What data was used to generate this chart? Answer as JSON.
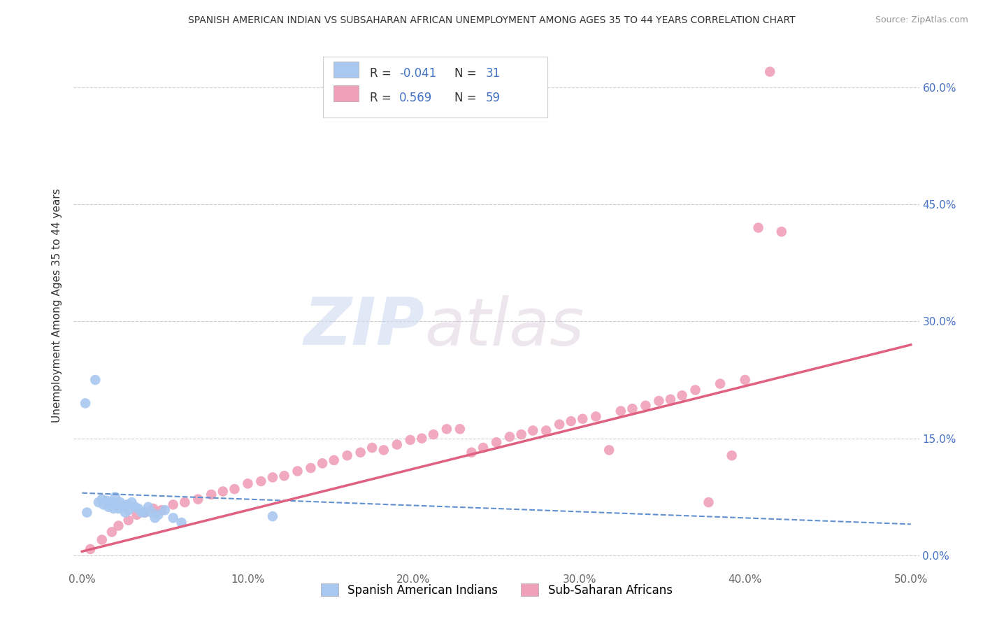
{
  "title": "SPANISH AMERICAN INDIAN VS SUBSAHARAN AFRICAN UNEMPLOYMENT AMONG AGES 35 TO 44 YEARS CORRELATION CHART",
  "source": "Source: ZipAtlas.com",
  "ylabel": "Unemployment Among Ages 35 to 44 years",
  "xlim": [
    -0.005,
    0.505
  ],
  "ylim": [
    -0.02,
    0.66
  ],
  "xticks": [
    0.0,
    0.1,
    0.2,
    0.3,
    0.4,
    0.5
  ],
  "yticks": [
    0.0,
    0.15,
    0.3,
    0.45,
    0.6
  ],
  "ytick_labels_right": [
    "0.0%",
    "15.0%",
    "30.0%",
    "45.0%",
    "60.0%"
  ],
  "xtick_labels": [
    "0.0%",
    "10.0%",
    "20.0%",
    "30.0%",
    "40.0%",
    "50.0%"
  ],
  "blue_R": -0.041,
  "blue_N": 31,
  "pink_R": 0.569,
  "pink_N": 59,
  "blue_color": "#a8c8f0",
  "pink_color": "#f0a0b8",
  "blue_line_color": "#6090d0",
  "pink_line_color": "#e06080",
  "watermark_zip": "ZIP",
  "watermark_atlas": "atlas",
  "legend_label_blue": "Spanish American Indians",
  "legend_label_pink": "Sub-Saharan Africans",
  "blue_scatter_x": [
    0.002,
    0.003,
    0.008,
    0.01,
    0.012,
    0.013,
    0.015,
    0.016,
    0.018,
    0.019,
    0.02,
    0.021,
    0.022,
    0.023,
    0.025,
    0.026,
    0.027,
    0.028,
    0.03,
    0.032,
    0.034,
    0.036,
    0.038,
    0.04,
    0.042,
    0.044,
    0.046,
    0.05,
    0.055,
    0.06,
    0.115
  ],
  "blue_scatter_y": [
    0.195,
    0.055,
    0.225,
    0.068,
    0.072,
    0.065,
    0.07,
    0.062,
    0.068,
    0.06,
    0.075,
    0.065,
    0.06,
    0.068,
    0.063,
    0.055,
    0.065,
    0.058,
    0.068,
    0.062,
    0.06,
    0.055,
    0.055,
    0.062,
    0.055,
    0.048,
    0.052,
    0.058,
    0.048,
    0.042,
    0.05
  ],
  "pink_scatter_x": [
    0.005,
    0.012,
    0.018,
    0.022,
    0.028,
    0.033,
    0.038,
    0.043,
    0.048,
    0.055,
    0.062,
    0.07,
    0.078,
    0.085,
    0.092,
    0.1,
    0.108,
    0.115,
    0.122,
    0.13,
    0.138,
    0.145,
    0.152,
    0.16,
    0.168,
    0.175,
    0.182,
    0.19,
    0.198,
    0.205,
    0.212,
    0.22,
    0.228,
    0.235,
    0.242,
    0.25,
    0.258,
    0.265,
    0.272,
    0.28,
    0.288,
    0.295,
    0.302,
    0.31,
    0.318,
    0.325,
    0.332,
    0.34,
    0.348,
    0.355,
    0.362,
    0.37,
    0.378,
    0.385,
    0.392,
    0.4,
    0.408,
    0.415,
    0.422
  ],
  "pink_scatter_y": [
    0.008,
    0.02,
    0.03,
    0.038,
    0.045,
    0.052,
    0.055,
    0.06,
    0.058,
    0.065,
    0.068,
    0.072,
    0.078,
    0.082,
    0.085,
    0.092,
    0.095,
    0.1,
    0.102,
    0.108,
    0.112,
    0.118,
    0.122,
    0.128,
    0.132,
    0.138,
    0.135,
    0.142,
    0.148,
    0.15,
    0.155,
    0.162,
    0.162,
    0.132,
    0.138,
    0.145,
    0.152,
    0.155,
    0.16,
    0.16,
    0.168,
    0.172,
    0.175,
    0.178,
    0.135,
    0.185,
    0.188,
    0.192,
    0.198,
    0.2,
    0.205,
    0.212,
    0.068,
    0.22,
    0.128,
    0.225,
    0.42,
    0.62,
    0.415
  ],
  "pink_trendline_x": [
    0.0,
    0.5
  ],
  "pink_trendline_y": [
    0.005,
    0.27
  ],
  "blue_trendline_x": [
    0.0,
    0.5
  ],
  "blue_trendline_y": [
    0.08,
    0.04
  ]
}
